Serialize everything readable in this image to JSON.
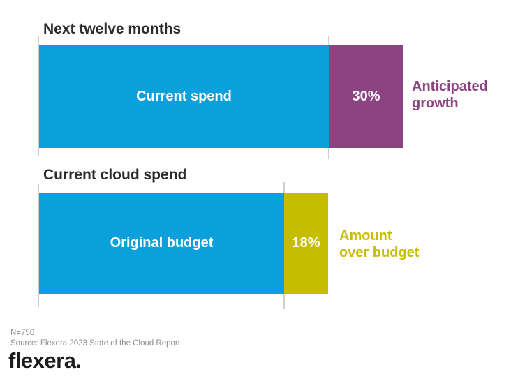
{
  "chart_data": [
    {
      "type": "bar",
      "orientation": "horizontal",
      "title": "Next twelve months",
      "categories": [
        "Next twelve months"
      ],
      "series": [
        {
          "name": "Current spend",
          "values": [
            100
          ],
          "color": "#0aa0dc"
        },
        {
          "name": "Anticipated growth",
          "values": [
            30
          ],
          "color": "#8b4381"
        }
      ],
      "data_labels": [
        "30%"
      ],
      "legend_position": "right",
      "grid": false
    },
    {
      "type": "bar",
      "orientation": "horizontal",
      "title": "Current cloud spend",
      "categories": [
        "Current cloud spend"
      ],
      "series": [
        {
          "name": "Original budget",
          "values": [
            100
          ],
          "color": "#0aa0dc"
        },
        {
          "name": "Amount over budget",
          "values": [
            18
          ],
          "color": "#c6bd00"
        }
      ],
      "data_labels": [
        "18%"
      ],
      "legend_position": "right",
      "grid": false
    }
  ],
  "sections": [
    {
      "heading": "Next twelve months",
      "bar_label": "Current spend",
      "percent": "30%",
      "side_label": "Anticipated growth",
      "side_label_line1": "Anticipated",
      "side_label_line2": "growth"
    },
    {
      "heading": "Current cloud spend",
      "bar_label": "Original budget",
      "percent": "18%",
      "side_label": "Amount over budget",
      "side_label_line1": "Amount",
      "side_label_line2": "over budget"
    }
  ],
  "footer": {
    "sample_size": "N=750",
    "source": "Source: Flexera 2023 State of the Cloud Report",
    "logo_text": "flexera."
  },
  "colors": {
    "bar_blue": "#0aa0dc",
    "bar_purple": "#8b4381",
    "bar_yellow": "#c6bd00",
    "heading_text": "#2b2b2b",
    "footnote_text": "#8c8c8c",
    "axis_line": "#cfcfcf",
    "logo_text": "#1c1c1c"
  }
}
